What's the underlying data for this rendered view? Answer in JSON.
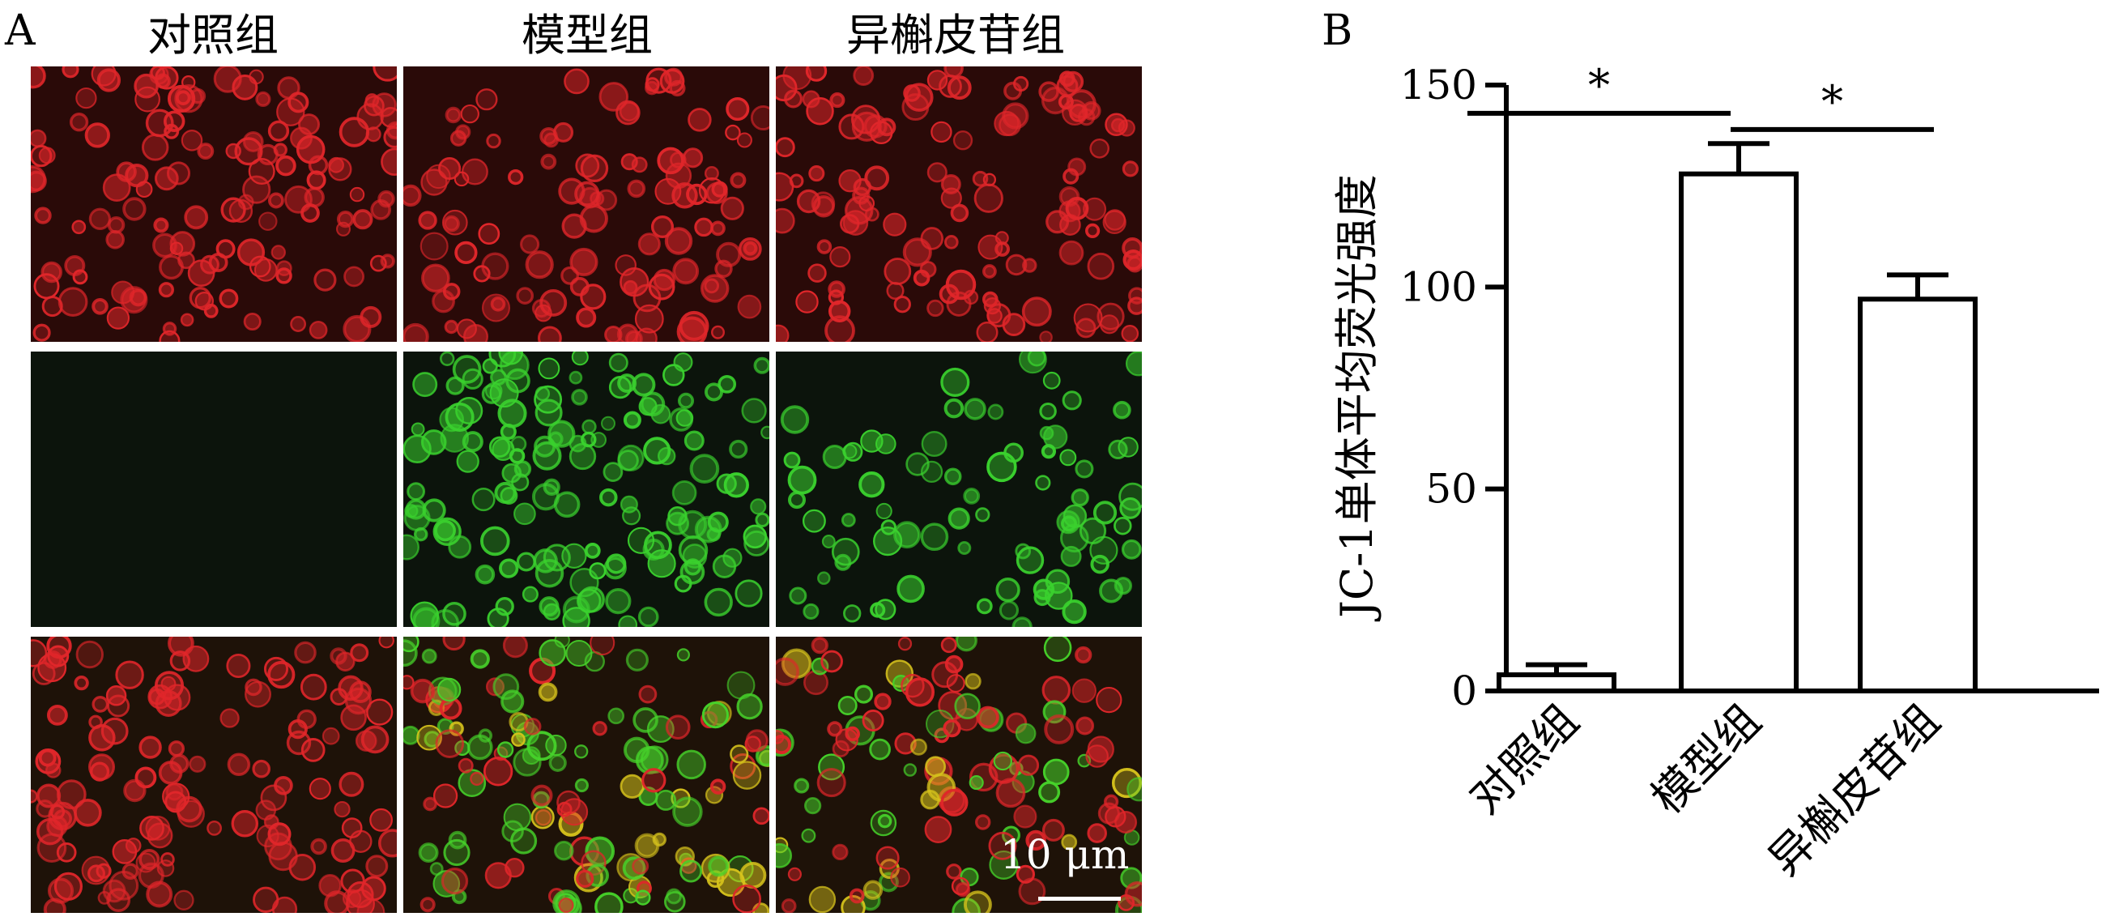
{
  "figure": {
    "panel_a_label": "A",
    "panel_b_label": "B",
    "micrograph_columns": [
      "对照组",
      "模型组",
      "异槲皮苷组"
    ],
    "micrograph_rows": [
      {
        "channel": "red",
        "color": "#e0262a",
        "density": [
          0.9,
          0.75,
          0.85
        ]
      },
      {
        "channel": "green",
        "color": "#3ad12e",
        "density": [
          0.0,
          1.0,
          0.55
        ]
      },
      {
        "channel": "merge",
        "color": "#c8b020",
        "density": [
          0.9,
          0.95,
          0.8
        ]
      }
    ],
    "scale_bar_label": "10 μm"
  },
  "chart_data": {
    "type": "bar",
    "categories": [
      "对照组",
      "模型组",
      "异槲皮苷组"
    ],
    "values": [
      4,
      128,
      97
    ],
    "errors": [
      2.5,
      7.5,
      6
    ],
    "ylabel": "JC-1单体平均荧光强度",
    "xlabel": "",
    "title": "",
    "ylim": [
      0,
      150
    ],
    "yticks": [
      0,
      50,
      100,
      150
    ],
    "grid": false,
    "bar_fill": "#ffffff",
    "bar_edge": "#000000",
    "significance": [
      {
        "from": 0,
        "to": 1,
        "label": "*",
        "y": 143
      },
      {
        "from": 1,
        "to": 2,
        "label": "*",
        "y": 139
      }
    ]
  }
}
